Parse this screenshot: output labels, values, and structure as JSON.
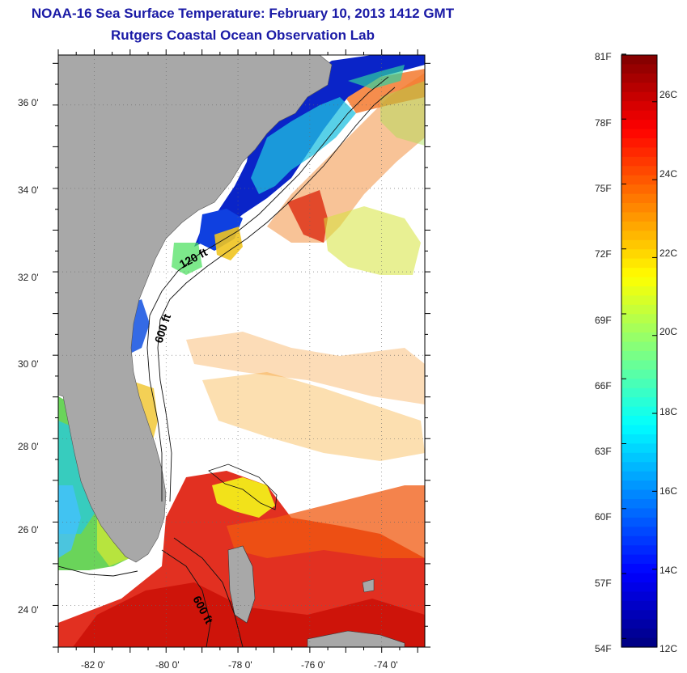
{
  "header": {
    "title": "NOAA-16 Sea Surface Temperature:  February 10, 2013 1412 GMT",
    "subtitle": "Rutgers Coastal Ocean Observation Lab"
  },
  "map": {
    "lat_ticks": [
      "36 0'",
      "34 0'",
      "32 0'",
      "30 0'",
      "28 0'",
      "26 0'",
      "24 0'"
    ],
    "lon_ticks": [
      "-82 0'",
      "-80 0'",
      "-78 0'",
      "-76 0'",
      "-74 0'"
    ],
    "lat_range": [
      23.0,
      37.2
    ],
    "lon_range": [
      -83.0,
      -72.8
    ],
    "contour_labels": [
      "120 ft",
      "600 ft",
      "600 ft"
    ],
    "land_color": "#a8a8a8",
    "cloud_color": "#ffffff"
  },
  "colorbar": {
    "fahrenheit_labels": [
      "81F",
      "78F",
      "75F",
      "72F",
      "69F",
      "66F",
      "63F",
      "60F",
      "57F",
      "54F"
    ],
    "celsius_labels": [
      "26C",
      "24C",
      "22C",
      "20C",
      "18C",
      "16C",
      "14C",
      "12C"
    ],
    "range_c": [
      12,
      27.2
    ],
    "colormap": "jet"
  }
}
